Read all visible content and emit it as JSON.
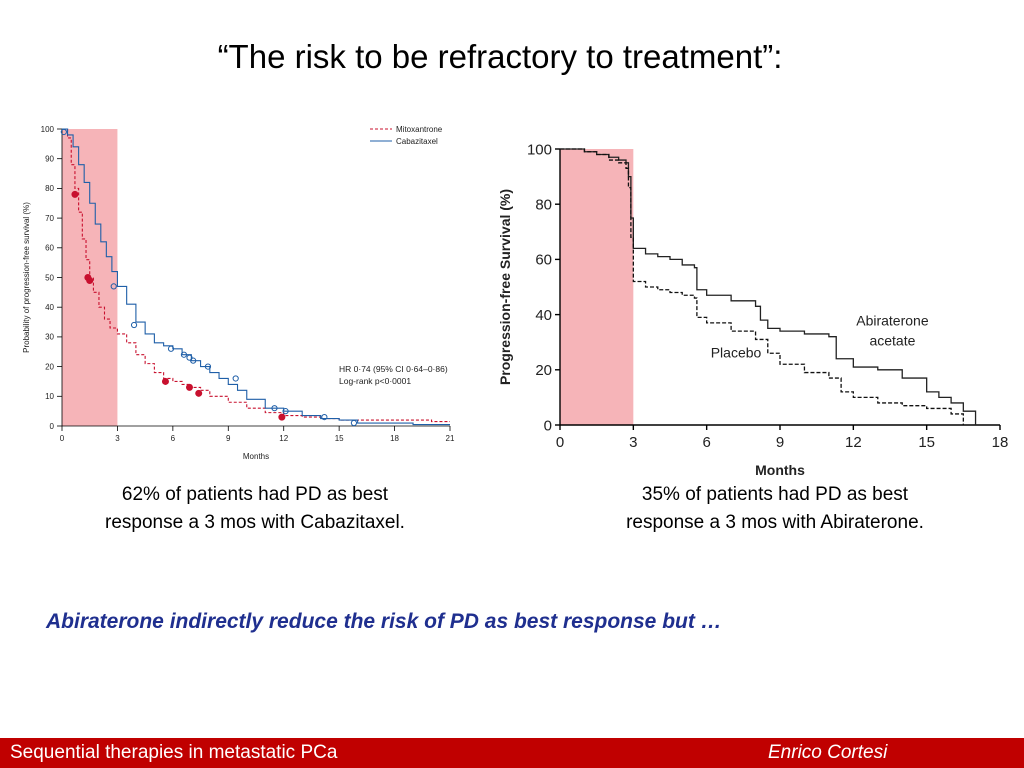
{
  "slide": {
    "title": "“The risk to be refractory to treatment”:",
    "caption_left": [
      "62% of patients had PD as best",
      "response a 3 mos with Cabazitaxel."
    ],
    "caption_right": [
      "35% of patients had PD as best",
      "response a 3 mos with Abiraterone."
    ],
    "conclusion": "Abiraterone indirectly reduce the risk of PD as best response but …",
    "footer_left": "Sequential therapies in metastatic PCa",
    "footer_right": "Enrico  Cortesi",
    "footer_color": "#c00000",
    "conclusion_color": "#1f2f8f"
  },
  "chart_data": [
    {
      "type": "line",
      "xlabel": "Months",
      "ylabel": "Probability of progression-free survival (%)",
      "xlim": [
        0,
        21
      ],
      "ylim": [
        0,
        100
      ],
      "xticks": [
        0,
        3,
        6,
        9,
        12,
        15,
        18,
        21
      ],
      "yticks": [
        0,
        10,
        20,
        30,
        40,
        50,
        60,
        70,
        80,
        90,
        100
      ],
      "highlight_region": [
        0,
        3
      ],
      "highlight_color": "#f4a7ab",
      "legend_position": "top-right",
      "annotation": [
        "HR 0·74 (95% CI 0·64–0·86)",
        "Log-rank p<0·0001"
      ],
      "series": [
        {
          "name": "Mitoxantrone",
          "color": "#c8102e",
          "style": "dashed",
          "x": [
            0,
            0.3,
            0.5,
            0.7,
            0.9,
            1.1,
            1.3,
            1.5,
            1.7,
            2.0,
            2.3,
            2.6,
            3.0,
            3.5,
            4.0,
            4.5,
            5.0,
            5.5,
            6.0,
            6.5,
            7.0,
            7.5,
            8.0,
            9.0,
            10.0,
            11.0,
            12.0,
            13.0,
            14.0,
            15.0,
            16.0,
            17.0,
            18.0,
            19.0,
            20.0,
            21.0
          ],
          "y": [
            100,
            97,
            88,
            80,
            72,
            63,
            56,
            50,
            45,
            40,
            36,
            33,
            31,
            28,
            24,
            21,
            18,
            16,
            15,
            14,
            13,
            12,
            10,
            8,
            6,
            4.5,
            3.5,
            3,
            2.5,
            2,
            2,
            2,
            2,
            2,
            1.5,
            1.5
          ],
          "marker_x": [
            0.7,
            1.4,
            1.5,
            5.6,
            6.9,
            7.4,
            11.9
          ],
          "marker_y": [
            78,
            50,
            49,
            15,
            13,
            11,
            3
          ]
        },
        {
          "name": "Cabazitaxel",
          "color": "#1f5fa8",
          "style": "solid",
          "x": [
            0,
            0.3,
            0.6,
            0.9,
            1.2,
            1.5,
            1.8,
            2.1,
            2.4,
            2.7,
            3.0,
            3.5,
            4.0,
            4.5,
            5.0,
            5.5,
            6.0,
            6.5,
            7.0,
            7.5,
            8.0,
            8.5,
            9.0,
            9.5,
            10.0,
            11.0,
            12.0,
            13.0,
            14.0,
            15.0,
            16.0,
            17.0,
            18.0,
            19.0,
            20.0,
            21.0
          ],
          "y": [
            100,
            98,
            94,
            88,
            82,
            75,
            68,
            62,
            57,
            52,
            47,
            41,
            35,
            31,
            28,
            27,
            26,
            24,
            22,
            20,
            18,
            16,
            14,
            12,
            9,
            6,
            5,
            3.5,
            2.5,
            2,
            1,
            1,
            1,
            0.5,
            0.5,
            0.5
          ],
          "marker_x": [
            0.1,
            2.8,
            3.9,
            5.9,
            6.6,
            6.9,
            7.1,
            7.9,
            9.4,
            11.5,
            12.1,
            14.2,
            15.8
          ],
          "marker_y": [
            99,
            47,
            34,
            26,
            24,
            23,
            22,
            20,
            16,
            6,
            5,
            3,
            1
          ]
        }
      ]
    },
    {
      "type": "line",
      "xlabel": "Months",
      "ylabel": "Progression-free Survival (%)",
      "xlim": [
        0,
        18
      ],
      "ylim": [
        0,
        100
      ],
      "xticks": [
        0,
        3,
        6,
        9,
        12,
        15,
        18
      ],
      "yticks": [
        0,
        20,
        40,
        60,
        80,
        100
      ],
      "highlight_region": [
        0,
        3
      ],
      "highlight_color": "#f4a7ab",
      "series": [
        {
          "name": "Abiraterone acetate",
          "color": "#222222",
          "style": "solid",
          "x": [
            0,
            0.5,
            1.0,
            1.5,
            2.0,
            2.4,
            2.7,
            2.8,
            2.9,
            3.0,
            3.5,
            4.0,
            4.5,
            5.0,
            5.5,
            5.6,
            6.0,
            7.0,
            8.0,
            8.2,
            8.5,
            9.0,
            10.0,
            11.0,
            11.3,
            12.0,
            13.0,
            14.0,
            15.0,
            15.5,
            16.0,
            16.5,
            17.0
          ],
          "y": [
            100,
            100,
            99,
            98,
            97,
            96,
            95,
            90,
            75,
            64,
            62,
            61,
            60,
            58,
            57,
            49,
            47,
            45,
            43,
            38,
            35,
            34,
            33,
            32,
            24,
            21,
            20,
            17,
            12,
            10,
            8,
            5,
            0
          ]
        },
        {
          "name": "Placebo",
          "color": "#111111",
          "style": "dashed",
          "x": [
            0,
            0.5,
            1.0,
            1.5,
            2.0,
            2.4,
            2.7,
            2.8,
            2.9,
            3.0,
            3.5,
            4.0,
            4.5,
            5.0,
            5.5,
            5.6,
            6.0,
            7.0,
            8.0,
            8.5,
            9.0,
            10.0,
            11.0,
            11.5,
            12.0,
            13.0,
            14.0,
            15.0,
            16.0,
            16.5
          ],
          "y": [
            100,
            100,
            99,
            98,
            96,
            95,
            93,
            86,
            68,
            52,
            50,
            49,
            48,
            47,
            46,
            39,
            37,
            34,
            31,
            26,
            22,
            19,
            17,
            12,
            10,
            8,
            7,
            6,
            4,
            0
          ]
        }
      ]
    }
  ]
}
